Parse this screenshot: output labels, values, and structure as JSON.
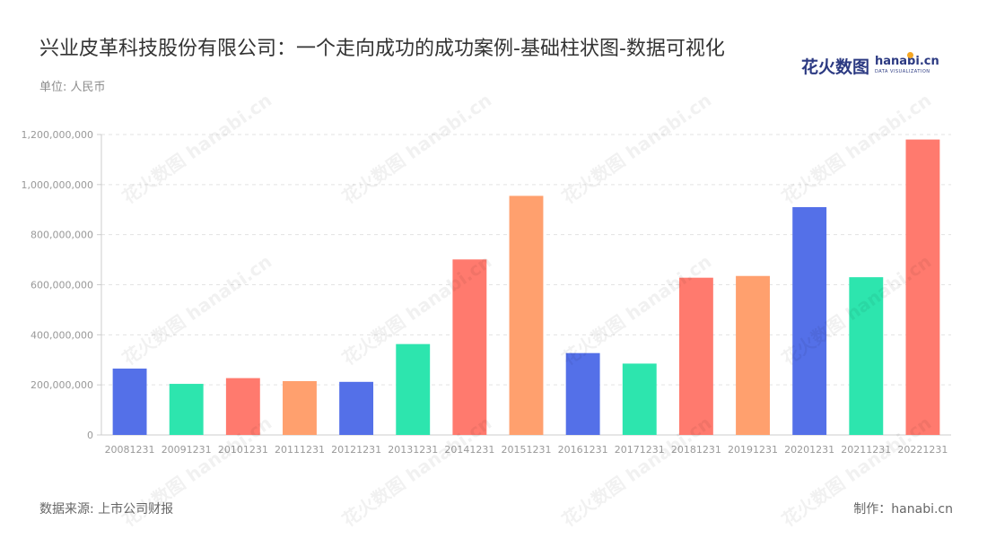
{
  "header": {
    "title": "兴业皮革科技股份有限公司：一个走向成功的成功案例-基础柱状图-数据可视化",
    "unit": "单位: 人民币"
  },
  "logo": {
    "cn": "花火数图",
    "en": "hanabi.cn",
    "sub": "DATA VISUALIZATION"
  },
  "footer": {
    "source": "数据来源: 上市公司财报",
    "maker": "制作：hanabi.cn"
  },
  "watermark": "花火数图 hanabi.cn",
  "colors": [
    "#5470e8",
    "#2de5ae",
    "#ff7a6e",
    "#ffa06e"
  ],
  "chart_data": {
    "type": "bar",
    "categories": [
      "20081231",
      "20091231",
      "20101231",
      "20111231",
      "20121231",
      "20131231",
      "20141231",
      "20151231",
      "20161231",
      "20171231",
      "20181231",
      "20191231",
      "20201231",
      "20211231",
      "20221231"
    ],
    "values": [
      265000000,
      204000000,
      227000000,
      215000000,
      212000000,
      363000000,
      701000000,
      955000000,
      327000000,
      285000000,
      628000000,
      635000000,
      910000000,
      630000000,
      1180000000
    ],
    "yticks": [
      "0",
      "200,000,000",
      "400,000,000",
      "600,000,000",
      "800,000,000",
      "1,000,000,000",
      "1,200,000,000"
    ],
    "ylim": [
      0,
      1200000000
    ],
    "grid": true
  }
}
